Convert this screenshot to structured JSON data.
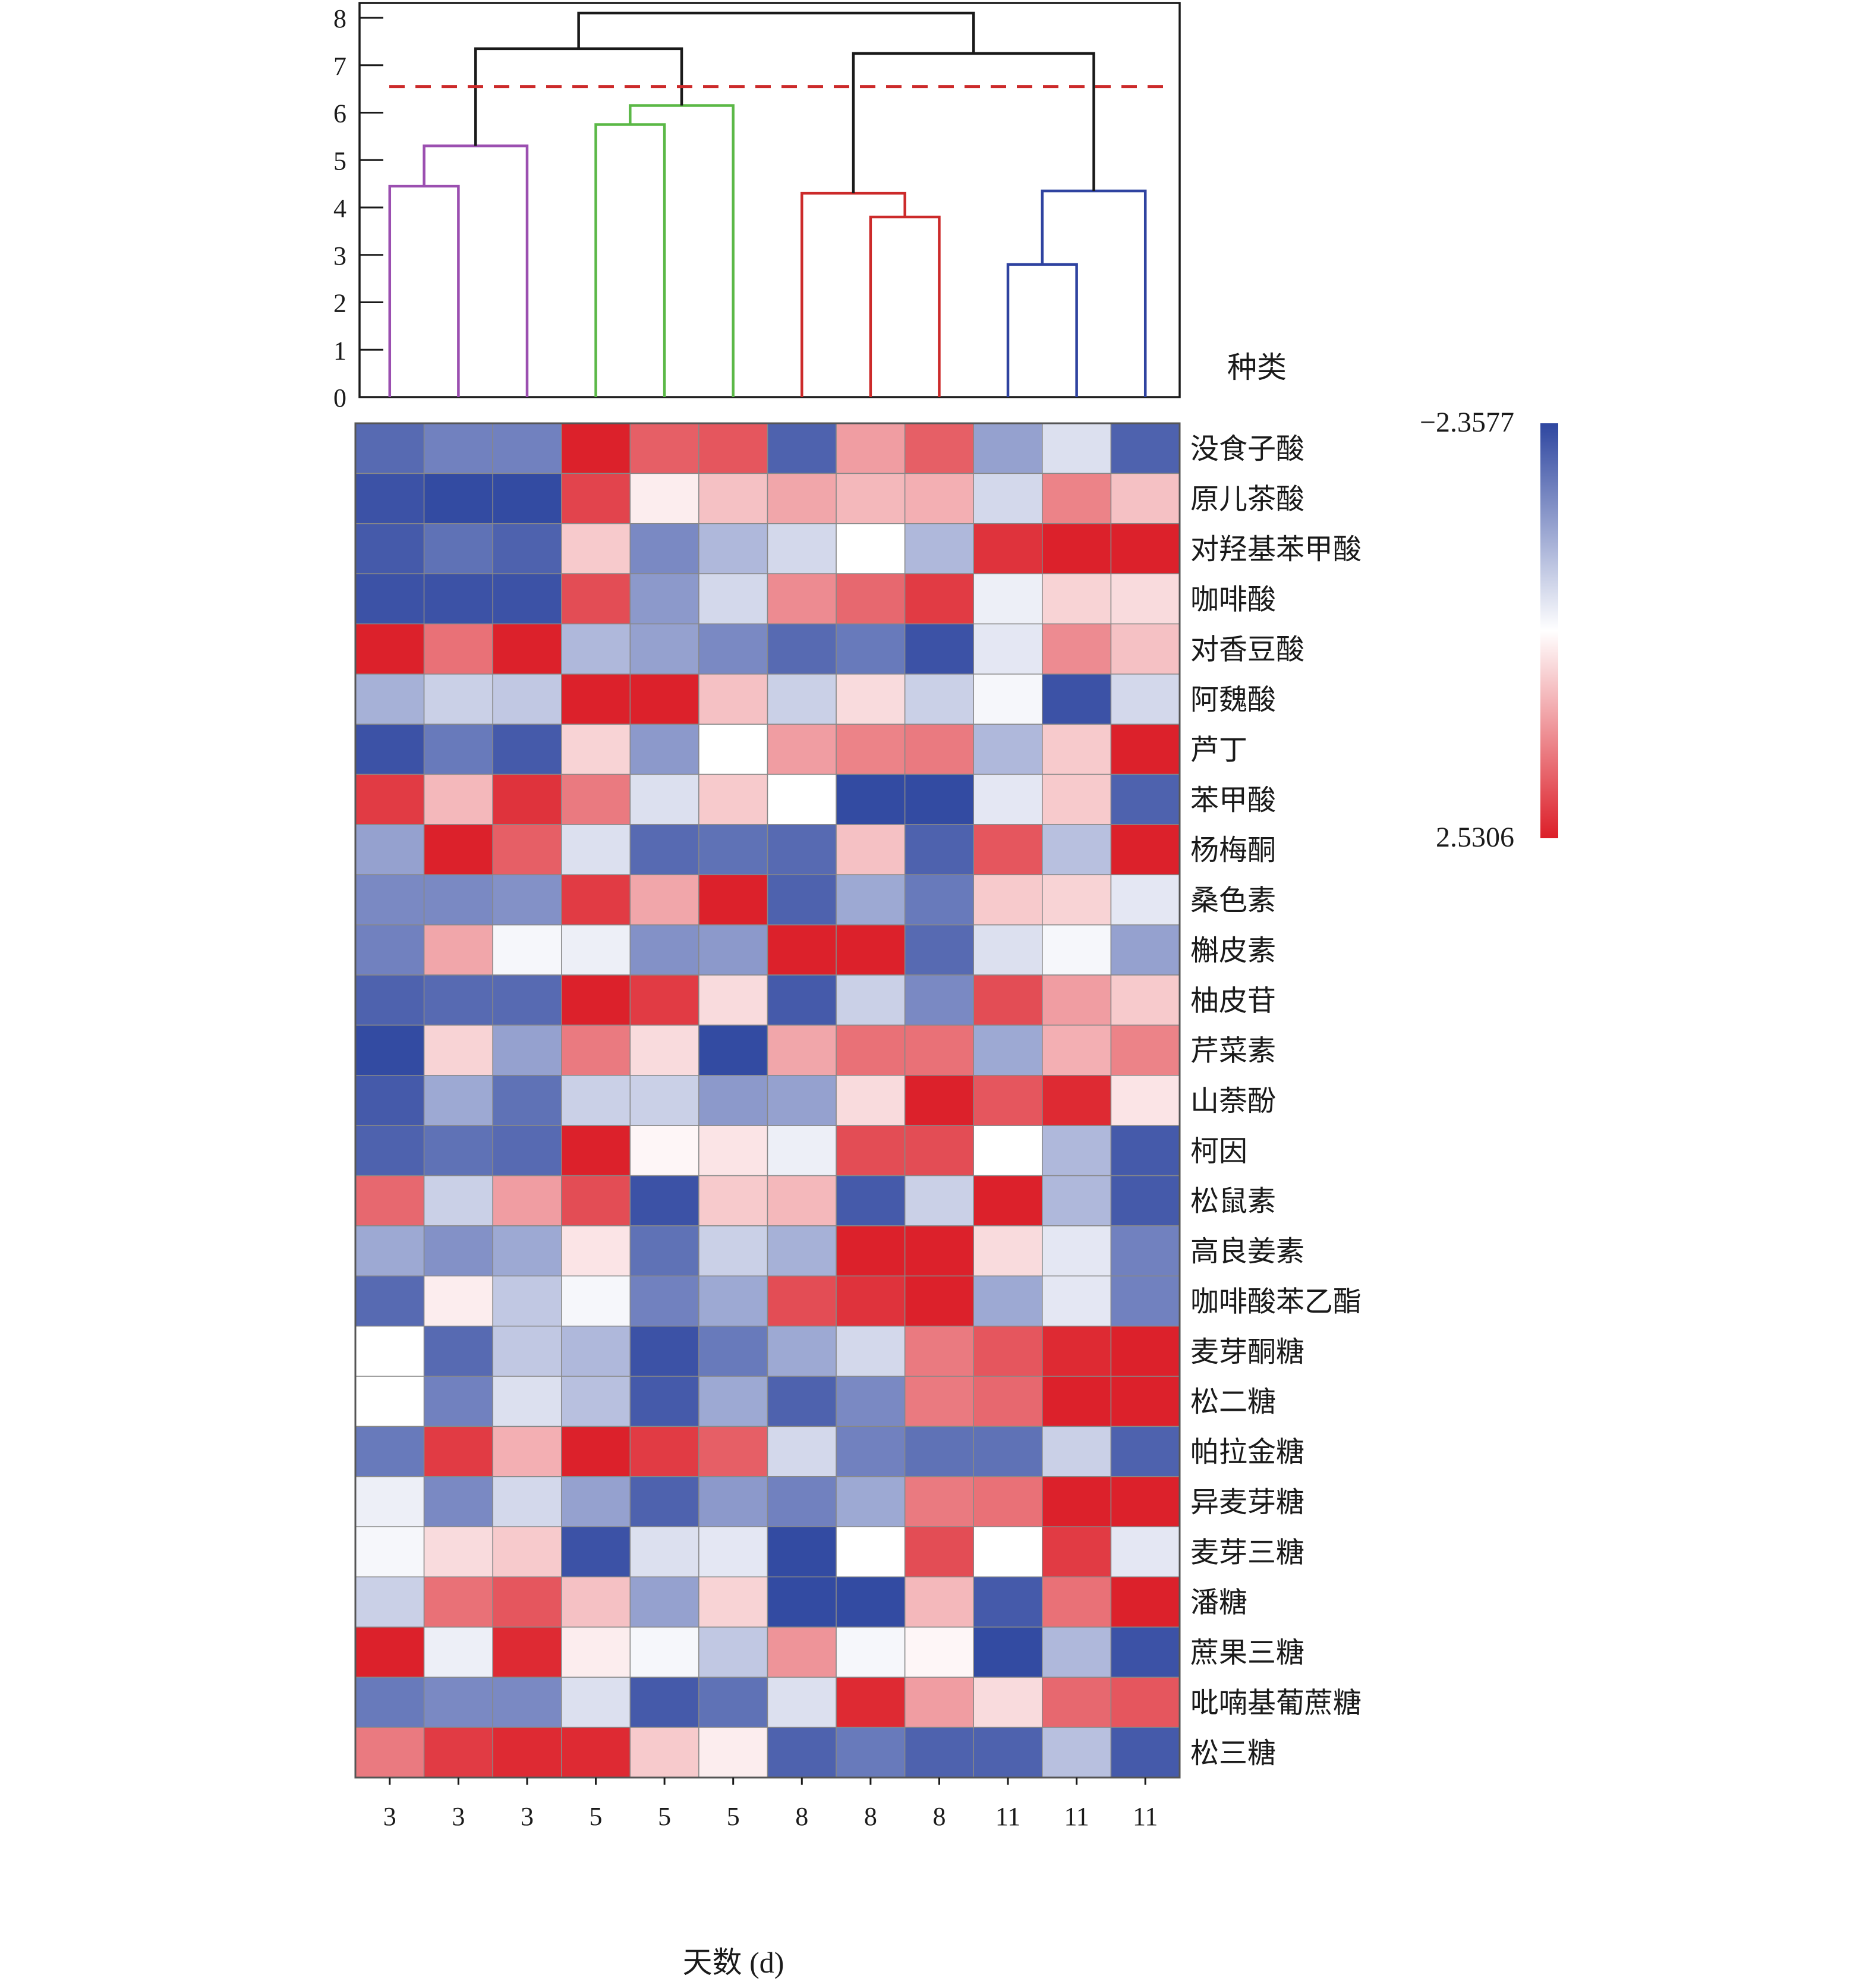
{
  "chart_data": {
    "type": "heatmap",
    "xlabel": "天数 (d)",
    "row_axis_title": "种类",
    "columns": [
      "3",
      "3",
      "3",
      "5",
      "5",
      "5",
      "8",
      "8",
      "8",
      "11",
      "11",
      "11"
    ],
    "rows": [
      "没食子酸",
      "原儿茶酸",
      "对羟基苯甲酸",
      "咖啡酸",
      "对香豆酸",
      "阿魏酸",
      "芦丁",
      "苯甲酸",
      "杨梅酮",
      "桑色素",
      "槲皮素",
      "柚皮苷",
      "芹菜素",
      "山萘酚",
      "柯因",
      "松鼠素",
      "高良姜素",
      "咖啡酸苯乙酯",
      "麦芽酮糖",
      "松二糖",
      "帕拉金糖",
      "异麦芽糖",
      "麦芽三糖",
      "潘糖",
      "蔗果三糖",
      "吡喃基葡蔗糖",
      "松三糖"
    ],
    "values": [
      [
        -1.9,
        -1.6,
        -1.6,
        2.5,
        1.8,
        1.9,
        -2.0,
        1.1,
        1.8,
        -1.2,
        -0.4,
        -2.0
      ],
      [
        -2.2,
        -2.3,
        -2.3,
        2.1,
        0.2,
        0.7,
        1.0,
        0.8,
        0.9,
        -0.5,
        1.4,
        0.7
      ],
      [
        -2.1,
        -1.8,
        -2.0,
        0.6,
        -1.5,
        -0.9,
        -0.5,
        0.0,
        -0.9,
        2.3,
        2.5,
        2.5
      ],
      [
        -2.2,
        -2.2,
        -2.2,
        2.0,
        -1.3,
        -0.5,
        1.3,
        1.7,
        2.2,
        -0.2,
        0.5,
        0.4
      ],
      [
        2.5,
        1.6,
        2.5,
        -0.9,
        -1.2,
        -1.5,
        -1.9,
        -1.7,
        -2.2,
        -0.3,
        1.3,
        0.7
      ],
      [
        -1.0,
        -0.6,
        -0.7,
        2.5,
        2.5,
        0.7,
        -0.6,
        0.4,
        -0.6,
        -0.1,
        -2.2,
        -0.5
      ],
      [
        -2.2,
        -1.7,
        -2.1,
        0.5,
        -1.3,
        0.0,
        1.1,
        1.4,
        1.5,
        -0.9,
        0.6,
        2.5
      ],
      [
        2.2,
        0.8,
        2.3,
        1.5,
        -0.4,
        0.6,
        0.0,
        -2.3,
        -2.3,
        -0.3,
        0.6,
        -2.0
      ],
      [
        -1.2,
        2.5,
        1.8,
        -0.4,
        -1.9,
        -1.8,
        -1.9,
        0.7,
        -2.0,
        1.9,
        -0.8,
        2.5
      ],
      [
        -1.5,
        -1.5,
        -1.4,
        2.2,
        1.0,
        2.5,
        -2.0,
        -1.1,
        -1.7,
        0.6,
        0.5,
        -0.3
      ],
      [
        -1.6,
        1.0,
        -0.1,
        -0.2,
        -1.4,
        -1.3,
        2.5,
        2.5,
        -1.9,
        -0.4,
        -0.1,
        -1.2
      ],
      [
        -2.0,
        -1.9,
        -1.9,
        2.5,
        2.2,
        0.4,
        -2.1,
        -0.6,
        -1.5,
        2.0,
        1.1,
        0.6
      ],
      [
        -2.3,
        0.5,
        -1.2,
        1.5,
        0.4,
        -2.3,
        1.0,
        1.6,
        1.6,
        -1.1,
        0.9,
        1.4
      ],
      [
        -2.1,
        -1.1,
        -1.8,
        -0.6,
        -0.6,
        -1.3,
        -1.2,
        0.4,
        2.5,
        1.9,
        2.4,
        0.3
      ],
      [
        -2.0,
        -1.8,
        -1.9,
        2.5,
        0.1,
        0.3,
        -0.2,
        2.0,
        2.0,
        0.0,
        -0.9,
        -2.1
      ],
      [
        1.7,
        -0.6,
        1.1,
        2.0,
        -2.2,
        0.6,
        0.8,
        -2.1,
        -0.6,
        2.5,
        -0.9,
        -2.1
      ],
      [
        -1.1,
        -1.4,
        -1.1,
        0.3,
        -1.8,
        -0.6,
        -1.0,
        2.5,
        2.5,
        0.4,
        -0.3,
        -1.6
      ],
      [
        -1.9,
        0.2,
        -0.7,
        -0.1,
        -1.6,
        -1.1,
        2.0,
        2.3,
        2.5,
        -1.1,
        -0.3,
        -1.6
      ],
      [
        0.0,
        -1.9,
        -0.7,
        -0.9,
        -2.2,
        -1.7,
        -1.1,
        -0.5,
        1.5,
        1.9,
        2.4,
        2.5
      ],
      [
        0.0,
        -1.6,
        -0.4,
        -0.8,
        -2.1,
        -1.1,
        -2.0,
        -1.5,
        1.5,
        1.7,
        2.5,
        2.5
      ],
      [
        -1.7,
        2.2,
        0.9,
        2.5,
        2.2,
        1.8,
        -0.5,
        -1.6,
        -1.8,
        -1.8,
        -0.6,
        -2.0
      ],
      [
        -0.2,
        -1.5,
        -0.5,
        -1.2,
        -2.0,
        -1.3,
        -1.6,
        -1.1,
        1.5,
        1.6,
        2.5,
        2.5
      ],
      [
        -0.1,
        0.4,
        0.6,
        -2.2,
        -0.4,
        -0.3,
        -2.3,
        0.0,
        2.0,
        0.0,
        2.2,
        -0.3
      ],
      [
        -0.6,
        1.6,
        1.9,
        0.7,
        -1.2,
        0.5,
        -2.3,
        -2.3,
        0.8,
        -2.1,
        1.6,
        2.5
      ],
      [
        2.5,
        -0.2,
        2.4,
        0.2,
        -0.1,
        -0.7,
        1.2,
        -0.1,
        0.1,
        -2.3,
        -0.9,
        -2.2
      ],
      [
        -1.7,
        -1.5,
        -1.5,
        -0.4,
        -2.1,
        -1.8,
        -0.4,
        2.4,
        1.1,
        0.4,
        1.7,
        1.9
      ],
      [
        1.5,
        2.2,
        2.4,
        2.4,
        0.6,
        0.2,
        -2.0,
        -1.7,
        -2.0,
        -2.0,
        -0.8,
        -2.1
      ]
    ],
    "colorscale": {
      "min": -2.3577,
      "max": 2.5306,
      "min_label": "−2.3577",
      "max_label": "2.5306",
      "min_color": "#2e46a0",
      "mid_color": "#ffffff",
      "max_color": "#dc1e28"
    },
    "dendrogram": {
      "y_ticks": [
        "0",
        "1",
        "2",
        "3",
        "4",
        "5",
        "6",
        "7",
        "8"
      ],
      "ylim": [
        0,
        8
      ],
      "cut_height": 6.55,
      "cut_color": "#cc2a2a",
      "links": [
        {
          "left": 0,
          "right": 1,
          "height": 4.45,
          "color": "#9b4fb0"
        },
        {
          "left": 3,
          "right": 4,
          "height": 5.75,
          "color": "#5bb847"
        },
        {
          "left": 7,
          "right": 8,
          "height": 3.8,
          "color": "#cc2a2a"
        },
        {
          "left": 9,
          "right": 10,
          "height": 2.8,
          "color": "#2f43a0"
        },
        {
          "left": 12,
          "right": 2,
          "height": 5.3,
          "color": "#9b4fb0"
        },
        {
          "left": 5,
          "right": 13,
          "height": 6.15,
          "color": "#5bb847"
        },
        {
          "left": 6,
          "right": 14,
          "height": 4.3,
          "color": "#cc2a2a"
        },
        {
          "left": 15,
          "right": 11,
          "height": 4.35,
          "color": "#2f43a0"
        },
        {
          "left": 16,
          "right": 17,
          "height": 7.35,
          "color": "#1a1a1a"
        },
        {
          "left": 18,
          "right": 19,
          "height": 7.25,
          "color": "#1a1a1a"
        },
        {
          "left": 20,
          "right": 21,
          "height": 8.1,
          "color": "#1a1a1a"
        }
      ]
    }
  }
}
